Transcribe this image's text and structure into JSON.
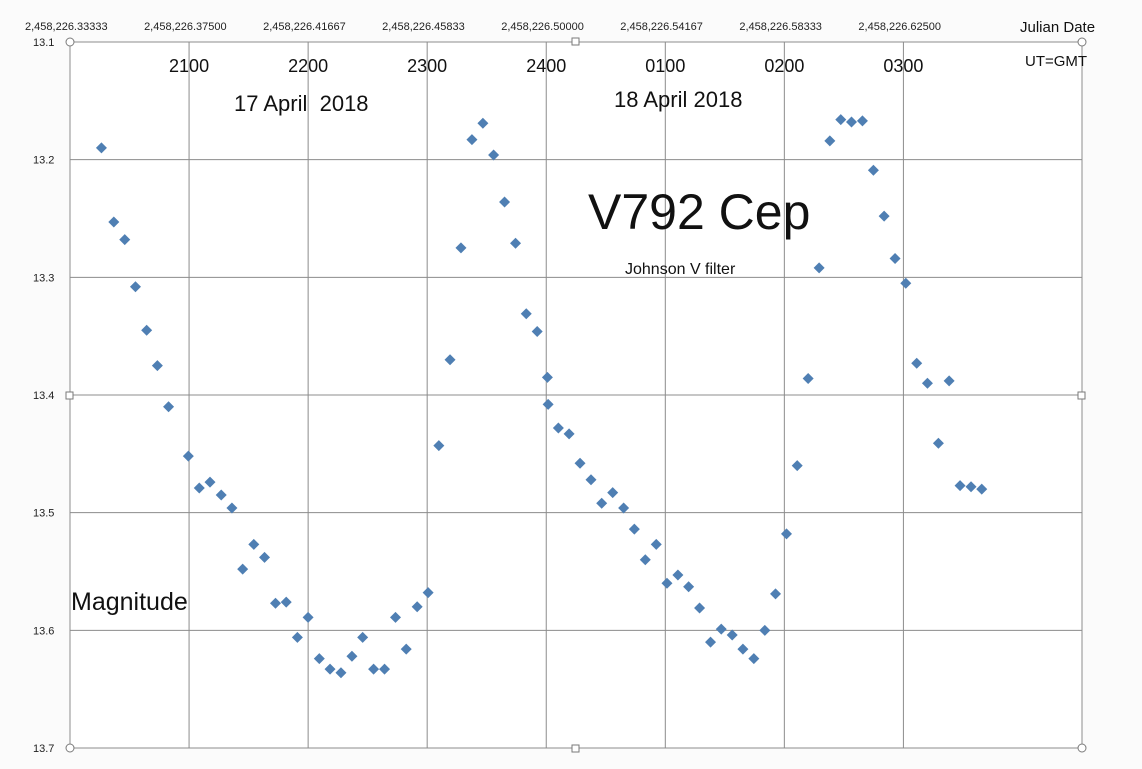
{
  "chart_data": {
    "type": "scatter",
    "title": "V792 Cep",
    "subtitle": "Johnson V filter",
    "ylabel": "Magnitude",
    "x_axis_label": "Julian Date",
    "x_axis_label_2": "UT=GMT",
    "date_labels": [
      "17 April  2018",
      "18 April 2018"
    ],
    "ylim": [
      13.7,
      13.1
    ],
    "y_reversed": true,
    "y_ticks": [
      13.1,
      13.2,
      13.3,
      13.4,
      13.5,
      13.6,
      13.7
    ],
    "xlim": [
      2458226.33333,
      2458226.6875
    ],
    "x_ticks": [
      {
        "value": 2458226.33333,
        "label": "2,458,226.33333"
      },
      {
        "value": 2458226.375,
        "label": "2,458,226.37500"
      },
      {
        "value": 2458226.41667,
        "label": "2,458,226.41667"
      },
      {
        "value": 2458226.45833,
        "label": "2,458,226.45833"
      },
      {
        "value": 2458226.5,
        "label": "2,458,226.50000"
      },
      {
        "value": 2458226.54167,
        "label": "2,458,226.54167"
      },
      {
        "value": 2458226.58333,
        "label": "2,458,226.58333"
      },
      {
        "value": 2458226.625,
        "label": "2,458,226.62500"
      }
    ],
    "hour_labels": [
      {
        "value": 2458226.375,
        "label": "2100"
      },
      {
        "value": 2458226.41667,
        "label": "2200"
      },
      {
        "value": 2458226.45833,
        "label": "2300"
      },
      {
        "value": 2458226.5,
        "label": "2400"
      },
      {
        "value": 2458226.54167,
        "label": "0100"
      },
      {
        "value": 2458226.58333,
        "label": "0200"
      },
      {
        "value": 2458226.625,
        "label": "0300"
      }
    ],
    "grid": true,
    "marker": "diamond",
    "marker_color": "#4f7fb3",
    "series": [
      {
        "points": [
          [
            2458226.34433,
            13.19
          ],
          [
            2458226.34866,
            13.253
          ],
          [
            2458226.35249,
            13.268
          ],
          [
            2458226.35624,
            13.308
          ],
          [
            2458226.36016,
            13.345
          ],
          [
            2458226.36391,
            13.375
          ],
          [
            2458226.36782,
            13.41
          ],
          [
            2458226.37475,
            13.452
          ],
          [
            2458226.37858,
            13.479
          ],
          [
            2458226.38233,
            13.474
          ],
          [
            2458226.38625,
            13.485
          ],
          [
            2458226.39,
            13.496
          ],
          [
            2458226.39375,
            13.548
          ],
          [
            2458226.39766,
            13.527
          ],
          [
            2458226.40141,
            13.538
          ],
          [
            2458226.40525,
            13.577
          ],
          [
            2458226.409,
            13.576
          ],
          [
            2458226.41291,
            13.606
          ],
          [
            2458226.41666,
            13.589
          ],
          [
            2458226.42058,
            13.624
          ],
          [
            2458226.42433,
            13.633
          ],
          [
            2458226.42816,
            13.636
          ],
          [
            2458226.432,
            13.622
          ],
          [
            2458226.43575,
            13.606
          ],
          [
            2458226.43958,
            13.633
          ],
          [
            2458226.44341,
            13.633
          ],
          [
            2458226.44725,
            13.589
          ],
          [
            2458226.451,
            13.616
          ],
          [
            2458226.45483,
            13.58
          ],
          [
            2458226.45866,
            13.568
          ],
          [
            2458226.46241,
            13.443
          ],
          [
            2458226.46633,
            13.37
          ],
          [
            2458226.47016,
            13.275
          ],
          [
            2458226.474,
            13.183
          ],
          [
            2458226.47783,
            13.169
          ],
          [
            2458226.48158,
            13.196
          ],
          [
            2458226.48541,
            13.236
          ],
          [
            2458226.48925,
            13.271
          ],
          [
            2458226.493,
            13.331
          ],
          [
            2458226.49683,
            13.346
          ],
          [
            2458226.50066,
            13.408
          ],
          [
            2458226.50041,
            13.385
          ],
          [
            2458226.50425,
            13.428
          ],
          [
            2458226.508,
            13.433
          ],
          [
            2458226.51183,
            13.458
          ],
          [
            2458226.51566,
            13.472
          ],
          [
            2458226.51941,
            13.492
          ],
          [
            2458226.52325,
            13.483
          ],
          [
            2458226.52708,
            13.496
          ],
          [
            2458226.53083,
            13.514
          ],
          [
            2458226.53466,
            13.54
          ],
          [
            2458226.5385,
            13.527
          ],
          [
            2458226.54225,
            13.56
          ],
          [
            2458226.54608,
            13.553
          ],
          [
            2458226.54983,
            13.563
          ],
          [
            2458226.55366,
            13.581
          ],
          [
            2458226.5575,
            13.61
          ],
          [
            2458226.56125,
            13.599
          ],
          [
            2458226.56508,
            13.604
          ],
          [
            2458226.56883,
            13.616
          ],
          [
            2458226.57266,
            13.624
          ],
          [
            2458226.5765,
            13.6
          ],
          [
            2458226.58025,
            13.569
          ],
          [
            2458226.58408,
            13.518
          ],
          [
            2458226.58783,
            13.46
          ],
          [
            2458226.59166,
            13.386
          ],
          [
            2458226.5955,
            13.292
          ],
          [
            2458226.59925,
            13.184
          ],
          [
            2458226.60308,
            13.166
          ],
          [
            2458226.60683,
            13.168
          ],
          [
            2458226.61066,
            13.167
          ],
          [
            2458226.6145,
            13.209
          ],
          [
            2458226.61825,
            13.248
          ],
          [
            2458226.62208,
            13.284
          ],
          [
            2458226.62583,
            13.305
          ],
          [
            2458226.62966,
            13.373
          ],
          [
            2458226.63341,
            13.39
          ],
          [
            2458226.63725,
            13.441
          ],
          [
            2458226.641,
            13.388
          ],
          [
            2458226.64483,
            13.477
          ],
          [
            2458226.64866,
            13.478
          ],
          [
            2458226.65241,
            13.48
          ]
        ]
      }
    ]
  }
}
